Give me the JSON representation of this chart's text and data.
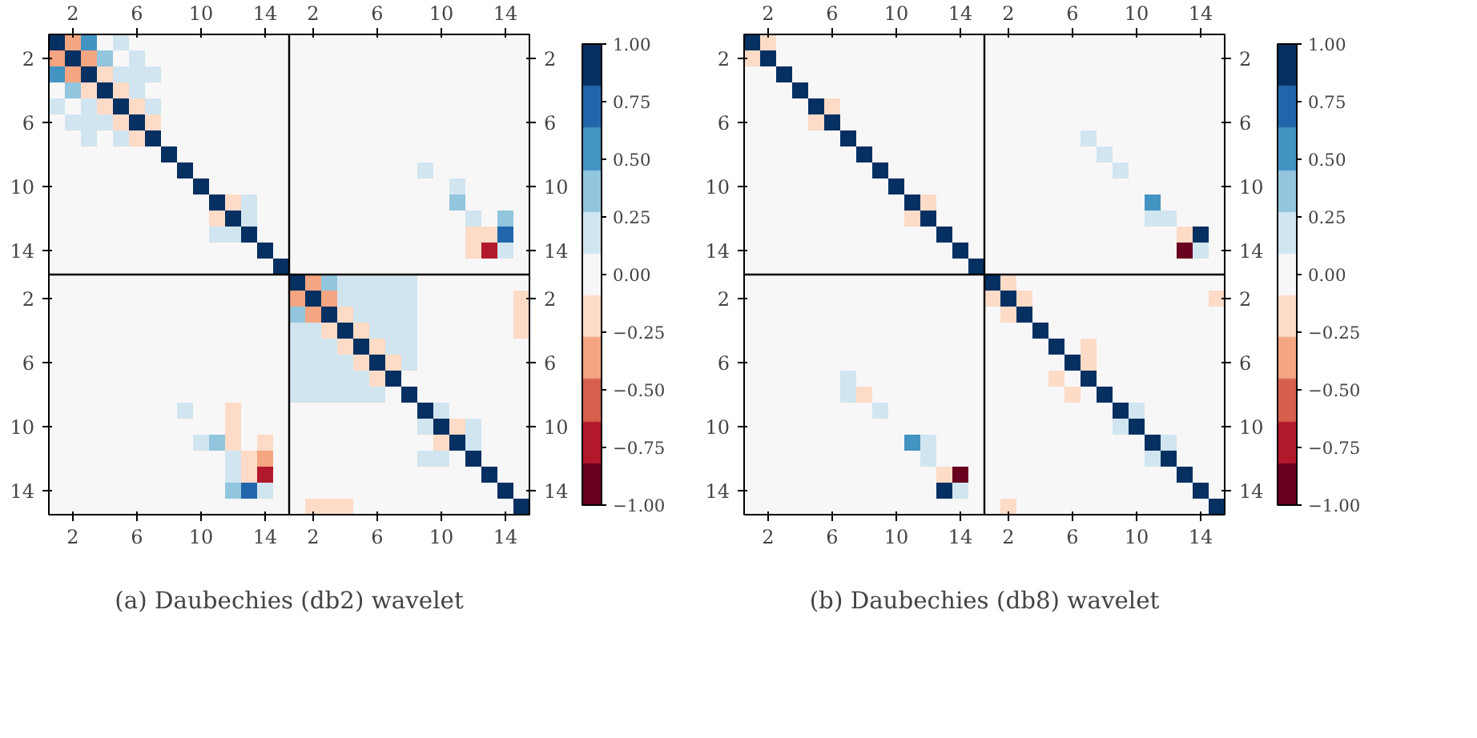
{
  "chart_data": [
    {
      "type": "heatmap",
      "title": "(a) Daubechies (db2) wavelet",
      "categories": [
        null,
        "2",
        null,
        null,
        null,
        "6",
        null,
        null,
        null,
        "10",
        null,
        null,
        null,
        "14",
        null,
        null,
        "2",
        null,
        null,
        null,
        "6",
        null,
        null,
        null,
        "10",
        null,
        null,
        null,
        "14",
        null
      ],
      "y_categories": [
        null,
        "2",
        null,
        null,
        null,
        "6",
        null,
        null,
        null,
        "10",
        null,
        null,
        null,
        "14",
        null,
        null,
        "2",
        null,
        null,
        null,
        "6",
        null,
        null,
        null,
        "10",
        null,
        null,
        null,
        "14",
        null
      ],
      "y2_categories": [
        null,
        "2",
        null,
        null,
        null,
        "6",
        null,
        null,
        null,
        "10",
        null,
        null,
        null,
        "14",
        null,
        null,
        "2",
        null,
        null,
        null,
        "6",
        null,
        null,
        null,
        "10",
        null,
        null,
        null,
        "14",
        null
      ],
      "clim": [
        -1,
        1
      ],
      "cticks": [
        {
          "value": -1,
          "label": "−1.00"
        },
        {
          "value": -0.75,
          "label": "−0.75"
        },
        {
          "value": -0.5,
          "label": "−0.50"
        },
        {
          "value": -0.25,
          "label": "−0.25"
        },
        {
          "value": 0,
          "label": "0.00"
        },
        {
          "value": 0.25,
          "label": "0.25"
        },
        {
          "value": 0.5,
          "label": "0.50"
        },
        {
          "value": 0.75,
          "label": "0.75"
        },
        {
          "value": 1,
          "label": "1.00"
        }
      ],
      "cells": [
        [
          1,
          -0.45,
          0.5,
          -0.05,
          0.1,
          0.05,
          0.05,
          0,
          0,
          0,
          0,
          0,
          0,
          0,
          0,
          0,
          0,
          0,
          0,
          0,
          0,
          0,
          0,
          0,
          0,
          0,
          0,
          0,
          0,
          0
        ],
        [
          -0.45,
          1,
          -0.3,
          0.3,
          0.05,
          0.1,
          0.05,
          0,
          0,
          0,
          0,
          0,
          0,
          0,
          0,
          0,
          0,
          0,
          0,
          0,
          0,
          0,
          0,
          0,
          0,
          0,
          0,
          0,
          0,
          0
        ],
        [
          0.5,
          -0.3,
          1,
          -0.2,
          0.1,
          0.1,
          0.1,
          0,
          0,
          0,
          0,
          0,
          0,
          0,
          0,
          0,
          0,
          0,
          0,
          0,
          0,
          0,
          0,
          0,
          0,
          0,
          0,
          0,
          0,
          0
        ],
        [
          -0.05,
          0.3,
          -0.2,
          1,
          -0.2,
          0.1,
          0.05,
          0,
          0,
          0,
          0,
          0,
          0,
          0,
          0,
          0,
          0,
          0,
          0,
          0,
          0,
          0,
          0,
          0,
          0,
          0,
          0,
          0,
          0,
          0
        ],
        [
          0.1,
          0.05,
          0.1,
          -0.2,
          1,
          -0.25,
          0.1,
          0,
          0,
          0,
          0,
          0,
          0,
          0,
          0,
          0,
          0,
          0,
          0,
          0,
          0,
          0,
          0,
          0,
          0,
          0,
          0,
          0,
          0,
          0
        ],
        [
          0.05,
          0.1,
          0.1,
          0.1,
          -0.25,
          1,
          -0.15,
          0,
          0,
          0,
          0,
          0,
          0,
          0,
          0,
          0,
          0,
          0,
          0,
          0,
          0,
          0,
          0,
          0,
          0,
          0,
          0,
          0,
          0,
          0
        ],
        [
          0.05,
          0.05,
          0.1,
          0.05,
          0.1,
          -0.15,
          1,
          -0.05,
          0,
          0,
          0,
          0,
          0,
          0,
          0,
          0,
          0,
          0,
          0,
          0,
          0,
          0,
          0,
          0,
          0,
          0,
          0,
          0,
          0,
          0
        ],
        [
          0,
          0,
          0,
          0,
          0,
          0,
          -0.05,
          1,
          -0.05,
          0,
          0,
          0,
          0,
          0,
          0,
          0,
          0,
          0,
          0,
          0,
          0,
          0,
          0.05,
          0,
          0.05,
          0,
          0,
          0,
          0,
          0
        ],
        [
          0,
          0,
          0,
          0,
          0,
          0,
          0,
          -0.05,
          1,
          0,
          0,
          0,
          0,
          0,
          0,
          0,
          0,
          0,
          0,
          0,
          0,
          0,
          0,
          0.1,
          0.05,
          -0.03,
          0,
          0,
          0,
          0
        ],
        [
          0,
          0,
          0,
          0,
          0,
          0,
          0,
          0,
          0,
          1,
          0,
          0,
          0,
          0,
          0,
          0,
          0,
          0,
          0,
          0,
          0,
          0,
          0,
          -0.03,
          0,
          0.15,
          -0.05,
          0,
          0,
          0
        ],
        [
          0,
          0,
          0,
          0,
          0,
          0,
          0,
          0,
          0,
          0,
          1,
          -0.25,
          0.1,
          0,
          0,
          0,
          0,
          0,
          0,
          0,
          0,
          0,
          0,
          0.05,
          0.05,
          0.35,
          -0.03,
          0.05,
          0.05,
          0
        ],
        [
          0,
          0,
          0,
          0,
          0,
          0,
          0,
          0,
          0,
          0,
          -0.25,
          1,
          0.1,
          -0.05,
          0,
          0,
          0,
          0,
          0,
          0,
          0,
          0,
          0,
          -0.05,
          -0.05,
          -0.05,
          0.15,
          0.05,
          0.35,
          0
        ],
        [
          0,
          0,
          0,
          0,
          0,
          0,
          0,
          0,
          0,
          0,
          0.1,
          0.1,
          1,
          0,
          0,
          0,
          0,
          0,
          0,
          0,
          0,
          0,
          0,
          0,
          0,
          0.03,
          -0.1,
          -0.1,
          0.7,
          0
        ],
        [
          0,
          0,
          0,
          0,
          0,
          0,
          0,
          0,
          0,
          0,
          0,
          -0.05,
          0,
          1,
          0,
          0,
          0,
          0,
          0,
          0,
          0,
          0,
          0,
          0,
          0,
          -0.03,
          -0.2,
          -0.7,
          0.2,
          0
        ],
        [
          0,
          0,
          0,
          0,
          0,
          0,
          0,
          0,
          0,
          0,
          0,
          0,
          0,
          0,
          1,
          0,
          0,
          0,
          0,
          0,
          0,
          0,
          0,
          0,
          0,
          0,
          0,
          0,
          0,
          0
        ],
        [
          0,
          0,
          0,
          0,
          0,
          0,
          0,
          0,
          0,
          0,
          0,
          0,
          0,
          0,
          0,
          1,
          -0.4,
          0.4,
          0.15,
          0.1,
          0.1,
          0.1,
          0.2,
          0,
          0,
          0,
          0,
          0,
          0,
          0
        ],
        [
          0,
          0,
          0,
          0,
          0,
          0,
          0,
          0,
          0,
          0,
          0,
          0,
          0,
          0,
          0,
          -0.4,
          1,
          -0.3,
          0.15,
          0.15,
          0.1,
          0.15,
          0.2,
          0,
          0,
          0,
          0,
          0,
          0,
          -0.15
        ],
        [
          0,
          0,
          0,
          0,
          0,
          0,
          0,
          0,
          0,
          0,
          0,
          0,
          0,
          0,
          0,
          0.4,
          -0.3,
          1,
          -0.2,
          0.1,
          0.1,
          0.1,
          0.2,
          0,
          0,
          0,
          0,
          0,
          0,
          -0.1
        ],
        [
          0,
          0,
          0,
          0,
          0,
          0,
          0,
          0,
          0,
          0,
          0,
          0,
          0,
          0,
          0,
          0.15,
          0.15,
          -0.2,
          1,
          -0.2,
          0.1,
          0.1,
          0.2,
          0,
          0,
          0,
          0,
          0,
          0,
          -0.1
        ],
        [
          0,
          0,
          0,
          0,
          0,
          0,
          0,
          0,
          0,
          0,
          0,
          0,
          0,
          0,
          0,
          0.1,
          0.15,
          0.1,
          -0.2,
          1,
          -0.2,
          0.1,
          0.2,
          0,
          0,
          0,
          0,
          0,
          0,
          -0.05
        ],
        [
          0,
          0,
          0,
          0,
          0,
          0,
          0,
          0,
          0,
          0,
          0,
          0,
          0,
          0,
          0,
          0.15,
          0.15,
          0.15,
          0.1,
          -0.2,
          1,
          -0.25,
          0.25,
          0,
          0,
          0,
          0,
          0,
          0,
          0
        ],
        [
          0,
          0,
          0,
          0,
          0,
          0,
          0,
          0,
          0,
          0,
          0,
          0,
          0,
          0,
          0,
          0.15,
          0.15,
          0.15,
          0.15,
          0.15,
          -0.25,
          1,
          0,
          0,
          0,
          0,
          0,
          0,
          0,
          0
        ],
        [
          0,
          0,
          0,
          0,
          0,
          0,
          0,
          0.05,
          0,
          0,
          0,
          0,
          0,
          0,
          0,
          0.2,
          0.2,
          0.2,
          0.2,
          0.2,
          0.25,
          0,
          1,
          0,
          0,
          0,
          0,
          0,
          0,
          0
        ],
        [
          0,
          0,
          0,
          0,
          0,
          0,
          0,
          0,
          0.15,
          -0.05,
          0.05,
          -0.1,
          0,
          0,
          0,
          0,
          0,
          0,
          0,
          0,
          0,
          0,
          0,
          1,
          0.1,
          -0.05,
          0,
          0,
          0,
          0
        ],
        [
          0,
          0,
          0,
          0,
          0,
          0,
          0,
          0.05,
          0.05,
          0.05,
          0.05,
          -0.1,
          0,
          0,
          0,
          0,
          0,
          0,
          0,
          0,
          0,
          0,
          0,
          0.1,
          1,
          -0.2,
          0.1,
          -0.05,
          0,
          0
        ],
        [
          0,
          0,
          0,
          0,
          0,
          0,
          0,
          0,
          0,
          0.2,
          0.45,
          -0.15,
          0.05,
          -0.1,
          0,
          0,
          0,
          0,
          0,
          0,
          0,
          0,
          0,
          -0.05,
          -0.2,
          1,
          0.2,
          -0.05,
          -0.05,
          0
        ],
        [
          0,
          0,
          0,
          0,
          0,
          0,
          0,
          0,
          0,
          -0.05,
          0,
          0.2,
          -0.15,
          -0.3,
          0,
          0,
          0,
          0,
          0,
          0,
          0,
          0,
          0,
          0.1,
          0.2,
          0,
          1,
          -0.05,
          0.05,
          0
        ],
        [
          0,
          0,
          0,
          0,
          0,
          0,
          0,
          0,
          0,
          0,
          0,
          0.1,
          -0.15,
          -0.75,
          0,
          0,
          0,
          0,
          0,
          0,
          0,
          0,
          0,
          0,
          -0.05,
          -0.05,
          0,
          1,
          0,
          0
        ],
        [
          0,
          0,
          0,
          0,
          0,
          0,
          0,
          0,
          0,
          0,
          0,
          0.45,
          0.7,
          0.25,
          0,
          0,
          0,
          0,
          0,
          0,
          0,
          0,
          0,
          0,
          0,
          -0.05,
          0,
          0,
          1,
          0
        ],
        [
          0,
          0,
          0,
          0,
          0,
          0,
          0,
          0,
          0,
          0,
          0,
          0,
          0,
          0,
          0,
          -0.05,
          -0.15,
          -0.1,
          -0.1,
          -0.05,
          -0.05,
          0,
          0,
          0,
          0,
          0,
          0,
          0,
          0,
          1
        ]
      ]
    },
    {
      "type": "heatmap",
      "title": "(b) Daubechies (db8) wavelet",
      "categories": [
        null,
        "2",
        null,
        null,
        null,
        "6",
        null,
        null,
        null,
        "10",
        null,
        null,
        null,
        "14",
        null,
        null,
        "2",
        null,
        null,
        null,
        "6",
        null,
        null,
        null,
        "10",
        null,
        null,
        null,
        "14",
        null
      ],
      "y_categories": [
        null,
        "2",
        null,
        null,
        null,
        "6",
        null,
        null,
        null,
        "10",
        null,
        null,
        null,
        "14",
        null,
        null,
        "2",
        null,
        null,
        null,
        "6",
        null,
        null,
        null,
        "10",
        null,
        null,
        null,
        "14",
        null
      ],
      "y2_categories": [
        null,
        "2",
        null,
        null,
        null,
        "6",
        null,
        null,
        null,
        "10",
        null,
        null,
        null,
        "14",
        null,
        null,
        "2",
        null,
        null,
        null,
        "6",
        null,
        null,
        null,
        "10",
        null,
        null,
        null,
        "14",
        null
      ],
      "clim": [
        -1,
        1
      ],
      "cticks": [
        {
          "value": -1,
          "label": "−1.00"
        },
        {
          "value": -0.75,
          "label": "−0.75"
        },
        {
          "value": -0.5,
          "label": "−0.50"
        },
        {
          "value": -0.25,
          "label": "−0.25"
        },
        {
          "value": 0,
          "label": "0.00"
        },
        {
          "value": 0.25,
          "label": "0.25"
        },
        {
          "value": 0.5,
          "label": "0.50"
        },
        {
          "value": 0.75,
          "label": "0.75"
        },
        {
          "value": 1,
          "label": "1.00"
        }
      ],
      "cells": [
        [
          1,
          -0.2,
          0.03,
          0,
          0,
          0,
          0,
          0,
          0,
          0,
          0,
          0,
          0,
          0,
          0,
          0,
          0,
          0,
          0,
          0,
          0,
          0,
          0,
          0,
          0,
          0,
          0,
          0,
          0,
          0
        ],
        [
          -0.2,
          1,
          -0.05,
          0,
          0,
          0,
          0,
          0,
          0,
          0,
          0,
          0,
          0,
          0,
          0,
          0,
          0,
          0,
          0,
          0,
          0,
          0,
          0,
          0,
          0,
          0,
          0,
          0,
          0,
          -0.05
        ],
        [
          0.03,
          -0.05,
          1,
          -0.05,
          0,
          0,
          0,
          0,
          0,
          0,
          0,
          0,
          0,
          0,
          0,
          0,
          0,
          0,
          0,
          0,
          0,
          0,
          0,
          0,
          0,
          0,
          0,
          0,
          0,
          0
        ],
        [
          0,
          0,
          -0.05,
          1,
          0,
          -0.03,
          0,
          0,
          0,
          0,
          0,
          0,
          0,
          0,
          0,
          0,
          0,
          0,
          0.03,
          0,
          0,
          0,
          0,
          0,
          0,
          0,
          0,
          0,
          0,
          0
        ],
        [
          0,
          0,
          0,
          0,
          1,
          -0.1,
          0,
          0,
          0,
          0,
          0,
          0,
          0,
          0,
          0,
          0,
          0,
          0,
          0,
          0.05,
          0.05,
          0,
          0,
          0,
          0,
          0,
          0,
          0,
          0,
          0
        ],
        [
          0,
          0,
          0,
          -0.03,
          -0.1,
          1,
          0,
          0,
          0,
          0,
          0,
          0,
          0,
          0,
          0,
          0,
          0,
          0,
          0,
          -0.03,
          0,
          -0.03,
          0,
          0,
          0,
          0,
          0,
          0,
          0,
          0
        ],
        [
          0,
          0,
          0,
          0,
          0,
          0,
          1,
          0.03,
          0,
          0,
          0,
          0,
          0,
          0,
          0,
          0,
          0,
          0,
          0,
          0,
          0,
          0.15,
          0,
          0,
          0,
          0,
          0,
          0,
          0,
          0
        ],
        [
          0,
          0,
          0,
          0,
          0,
          0,
          0.03,
          1,
          0.03,
          0,
          0,
          0,
          0,
          0,
          0,
          0,
          0,
          0,
          0,
          0,
          0,
          0,
          0.25,
          0.05,
          0,
          0,
          0,
          0,
          0,
          0
        ],
        [
          0,
          0,
          0,
          0,
          0,
          0,
          0,
          0.03,
          1,
          0.03,
          0,
          0,
          0,
          0,
          0,
          0,
          0,
          0,
          0,
          0,
          0,
          0,
          -0.05,
          0.1,
          0.05,
          0.03,
          0,
          0,
          0,
          0
        ],
        [
          0,
          0,
          0,
          0,
          0,
          0,
          0,
          0,
          0.03,
          1,
          -0.03,
          0,
          0,
          0,
          0,
          0,
          0,
          0,
          0,
          0,
          0,
          0,
          0,
          0,
          0,
          0.05,
          0,
          0,
          0,
          0
        ],
        [
          0,
          0,
          0,
          0,
          0,
          0,
          0,
          0,
          0,
          -0.03,
          1,
          -0.1,
          -0.03,
          0,
          0,
          0,
          0,
          0,
          0,
          0,
          0,
          0,
          0,
          0,
          0,
          0.6,
          0,
          0,
          0,
          0
        ],
        [
          0,
          0,
          0,
          0,
          0,
          0,
          0,
          0,
          0,
          0,
          -0.1,
          1,
          0,
          0,
          0,
          0,
          0,
          0,
          0,
          0,
          0,
          0,
          0,
          0,
          -0.03,
          0.15,
          0.15,
          -0.03,
          0,
          0
        ],
        [
          0,
          0,
          0,
          0,
          0,
          0,
          0,
          0,
          0,
          0,
          -0.03,
          0,
          1,
          0,
          0,
          0,
          0,
          0,
          0,
          0,
          0,
          0,
          0,
          0,
          0,
          0,
          -0.03,
          -0.25,
          0.85,
          0
        ],
        [
          0,
          0,
          0,
          0,
          0,
          0,
          0,
          0,
          0,
          0,
          0,
          0,
          0,
          1,
          0,
          0,
          0,
          0,
          0,
          0,
          0,
          0,
          0,
          0,
          0,
          0,
          0,
          -0.85,
          0.2,
          0
        ],
        [
          0,
          0,
          0,
          0,
          0,
          0,
          0,
          0,
          0,
          0,
          0,
          0,
          0,
          0,
          1,
          -0.03,
          0,
          0,
          -0.05,
          0,
          0,
          0,
          0,
          0,
          0,
          0,
          0,
          0,
          0,
          0
        ],
        [
          0,
          0,
          0,
          0,
          0,
          0,
          0,
          0,
          0,
          0,
          0,
          0,
          0,
          0,
          0,
          1,
          -0.25,
          -0.03,
          0,
          0,
          0,
          0,
          0,
          0,
          0,
          0,
          0,
          0,
          0,
          0
        ],
        [
          0,
          0.03,
          0,
          0,
          0,
          0,
          0,
          0,
          0,
          0,
          0,
          0,
          0,
          0,
          0,
          -0.25,
          1,
          -0.1,
          0,
          0,
          0,
          0,
          0,
          0,
          0,
          0,
          0,
          0,
          0,
          -0.2
        ],
        [
          0,
          0,
          0,
          0,
          0,
          0,
          0,
          0,
          0,
          0,
          0,
          0,
          0,
          0,
          0,
          -0.03,
          -0.1,
          1,
          0,
          0,
          0,
          0,
          0,
          0,
          0,
          0,
          0,
          0,
          0,
          -0.05
        ],
        [
          0,
          0,
          0,
          0.05,
          0.03,
          0,
          0,
          0,
          0,
          0,
          0,
          0,
          0,
          0,
          0,
          0,
          0,
          0,
          1,
          -0.03,
          0,
          0,
          0,
          0,
          0,
          0,
          0,
          0,
          0,
          0
        ],
        [
          0,
          0,
          0,
          0,
          0.05,
          -0.03,
          0,
          0,
          0,
          0,
          0,
          0,
          0,
          0,
          0,
          0,
          0,
          0,
          -0.03,
          1,
          -0.05,
          -0.1,
          0,
          0,
          0,
          0,
          0,
          0,
          0,
          0
        ],
        [
          0,
          0,
          0,
          0,
          0.05,
          0.05,
          0,
          0,
          0,
          0,
          0,
          0,
          0,
          0,
          0,
          0,
          0,
          0,
          0,
          -0.05,
          1,
          -0.1,
          0,
          0,
          0,
          0,
          0,
          0,
          0,
          0
        ],
        [
          0,
          0,
          0,
          0,
          0,
          -0.03,
          0.15,
          0.05,
          0,
          0,
          0,
          0,
          0,
          0,
          0,
          0,
          0,
          0,
          0,
          -0.1,
          -0.03,
          1,
          -0.03,
          0,
          0,
          0,
          0,
          0,
          0,
          0
        ],
        [
          0,
          0,
          0,
          0,
          0,
          -0.03,
          0.2,
          -0.1,
          0,
          0,
          0,
          0,
          0,
          0,
          0,
          0,
          0,
          0,
          0,
          0,
          -0.1,
          -0.05,
          1,
          0.05,
          0,
          0,
          0,
          0,
          0,
          0
        ],
        [
          0,
          0,
          0,
          0,
          0,
          0,
          0,
          0.05,
          0.1,
          0.03,
          0,
          0,
          0,
          0,
          0,
          0,
          0,
          0,
          0,
          0,
          0,
          0,
          0.05,
          1,
          0.1,
          0,
          0,
          0,
          0,
          0
        ],
        [
          0,
          0,
          0,
          0,
          0,
          0,
          0,
          0,
          0.05,
          0,
          0,
          -0.03,
          0,
          0,
          0,
          0,
          0,
          0,
          0,
          0,
          0,
          0,
          0,
          0.1,
          1,
          0,
          0,
          0,
          0,
          0
        ],
        [
          0,
          0,
          0,
          0,
          0,
          0,
          0,
          0,
          0,
          0.05,
          0.6,
          0.2,
          -0.03,
          0,
          0,
          0,
          0,
          0,
          0,
          0,
          0,
          0,
          0,
          0,
          0,
          1,
          0.15,
          0,
          0,
          0
        ],
        [
          0,
          0,
          0,
          0,
          0,
          0,
          0,
          0,
          0,
          0,
          0,
          0.2,
          0,
          0,
          0,
          0,
          0,
          0,
          0,
          0,
          0,
          0,
          0,
          0,
          0,
          0.15,
          1,
          0,
          0,
          0
        ],
        [
          0,
          0,
          0,
          0,
          0,
          0,
          0,
          0,
          0,
          0,
          0,
          -0.03,
          -0.25,
          -0.85,
          0,
          0,
          0,
          0,
          0,
          0,
          0,
          0,
          0,
          0,
          0,
          0,
          0,
          1,
          0,
          0
        ],
        [
          0,
          0,
          0,
          0,
          0,
          0,
          0,
          0,
          0,
          0,
          0,
          0,
          0.85,
          0.2,
          0,
          0,
          0,
          0,
          0,
          0,
          0,
          0,
          0,
          0,
          0,
          0,
          0,
          0,
          1,
          0
        ],
        [
          0,
          -0.05,
          0,
          0,
          0,
          0,
          0,
          0,
          0,
          0,
          0,
          0,
          0,
          0,
          0,
          0,
          -0.2,
          -0.05,
          -0.05,
          -0.05,
          0,
          0,
          0,
          0,
          0,
          0,
          0,
          0,
          0,
          1
        ]
      ]
    }
  ]
}
